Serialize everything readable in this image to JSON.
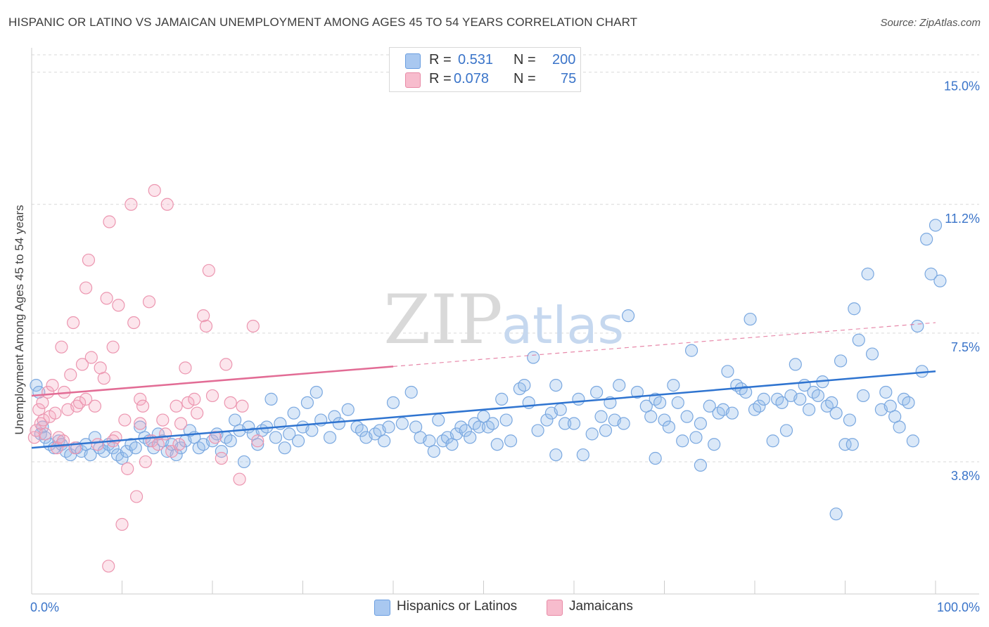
{
  "header": {
    "title": "HISPANIC OR LATINO VS JAMAICAN UNEMPLOYMENT AMONG AGES 45 TO 54 YEARS CORRELATION CHART",
    "source": "Source: ZipAtlas.com"
  },
  "watermark": {
    "zip": "ZIP",
    "atlas": "atlas"
  },
  "legend": {
    "r_label": "R =",
    "n_label": "N =",
    "series": [
      {
        "name": "Hispanics or Latinos",
        "r": "0.531",
        "n": "200",
        "fill": "#a9c8f0",
        "stroke": "#6a9ee0"
      },
      {
        "name": "Jamaicans",
        "r": "0.078",
        "n": "75",
        "fill": "#f7bccd",
        "stroke": "#e88aa6"
      }
    ]
  },
  "colors": {
    "blue_point_fill": "rgba(150,188,236,0.35)",
    "blue_point_stroke": "#7aa8e0",
    "blue_line": "#2f74d0",
    "pink_point_fill": "rgba(246,170,192,0.30)",
    "pink_point_stroke": "#ec96b0",
    "pink_line": "#e26c95",
    "tick_label": "#3a74c9",
    "grid": "#d9d9d9"
  },
  "chart_data": {
    "type": "scatter",
    "title": "HISPANIC OR LATINO VS JAMAICAN UNEMPLOYMENT AMONG AGES 45 TO 54 YEARS CORRELATION CHART",
    "xlabel": "",
    "ylabel": "Unemployment Among Ages 45 to 54 years",
    "xlim": [
      0,
      100
    ],
    "ylim": [
      0,
      15.5
    ],
    "x_tick_labels": [
      "0.0%",
      "100.0%"
    ],
    "y_ticks": [
      3.8,
      7.5,
      11.2,
      15.0
    ],
    "y_tick_labels": [
      "3.8%",
      "7.5%",
      "11.2%",
      "15.0%"
    ],
    "grid": true,
    "series": [
      {
        "name": "Hispanics or Latinos",
        "trend": {
          "x0": 0,
          "y0": 4.2,
          "x1": 100,
          "y1": 6.4,
          "solid_to": 100
        },
        "points": [
          [
            0.5,
            6.0
          ],
          [
            0.8,
            5.8
          ],
          [
            1.0,
            4.6
          ],
          [
            1.2,
            4.8
          ],
          [
            1.5,
            4.5
          ],
          [
            2,
            4.3
          ],
          [
            2.5,
            4.2
          ],
          [
            3,
            4.4
          ],
          [
            3.3,
            4.3
          ],
          [
            3.8,
            4.1
          ],
          [
            4.3,
            4.0
          ],
          [
            5,
            4.2
          ],
          [
            5.5,
            4.1
          ],
          [
            6,
            4.3
          ],
          [
            6.5,
            4.0
          ],
          [
            7,
            4.5
          ],
          [
            7.5,
            4.2
          ],
          [
            8,
            4.1
          ],
          [
            8.5,
            4.3
          ],
          [
            9,
            4.2
          ],
          [
            9.5,
            4.0
          ],
          [
            10,
            3.9
          ],
          [
            10.5,
            4.1
          ],
          [
            11,
            4.3
          ],
          [
            11.5,
            4.2
          ],
          [
            12,
            4.8
          ],
          [
            12.5,
            4.5
          ],
          [
            13,
            4.4
          ],
          [
            13.5,
            4.2
          ],
          [
            14,
            4.6
          ],
          [
            14.5,
            4.4
          ],
          [
            15,
            4.1
          ],
          [
            15.5,
            4.3
          ],
          [
            16,
            4.0
          ],
          [
            16.5,
            4.2
          ],
          [
            17,
            4.4
          ],
          [
            17.5,
            4.7
          ],
          [
            18,
            4.5
          ],
          [
            18.5,
            4.2
          ],
          [
            19,
            4.3
          ],
          [
            20,
            4.4
          ],
          [
            20.5,
            4.6
          ],
          [
            21,
            4.1
          ],
          [
            21.5,
            4.5
          ],
          [
            22,
            4.4
          ],
          [
            22.5,
            5.0
          ],
          [
            23,
            4.7
          ],
          [
            23.5,
            3.8
          ],
          [
            24,
            4.8
          ],
          [
            24.5,
            4.6
          ],
          [
            25,
            4.3
          ],
          [
            25.5,
            4.7
          ],
          [
            26,
            4.8
          ],
          [
            26.5,
            5.6
          ],
          [
            27,
            4.5
          ],
          [
            27.5,
            4.9
          ],
          [
            28,
            4.2
          ],
          [
            28.5,
            4.6
          ],
          [
            29,
            5.2
          ],
          [
            29.5,
            4.4
          ],
          [
            30,
            4.8
          ],
          [
            30.5,
            5.5
          ],
          [
            31,
            4.7
          ],
          [
            31.5,
            5.8
          ],
          [
            32,
            5.0
          ],
          [
            33,
            4.5
          ],
          [
            33.5,
            5.1
          ],
          [
            34,
            4.9
          ],
          [
            35,
            5.3
          ],
          [
            36,
            4.8
          ],
          [
            36.5,
            4.7
          ],
          [
            37,
            4.5
          ],
          [
            38,
            4.6
          ],
          [
            38.5,
            4.7
          ],
          [
            39,
            4.4
          ],
          [
            39.5,
            4.8
          ],
          [
            40,
            5.5
          ],
          [
            41,
            4.9
          ],
          [
            42,
            5.8
          ],
          [
            42.5,
            4.8
          ],
          [
            43,
            4.5
          ],
          [
            44,
            4.4
          ],
          [
            44.5,
            4.1
          ],
          [
            45,
            5.0
          ],
          [
            45.5,
            4.4
          ],
          [
            46,
            4.5
          ],
          [
            46.5,
            4.3
          ],
          [
            47,
            4.6
          ],
          [
            47.5,
            4.8
          ],
          [
            48,
            4.7
          ],
          [
            48.5,
            4.5
          ],
          [
            49,
            4.9
          ],
          [
            49.5,
            4.8
          ],
          [
            50,
            5.1
          ],
          [
            50.5,
            4.8
          ],
          [
            51,
            4.9
          ],
          [
            51.5,
            4.3
          ],
          [
            52,
            5.6
          ],
          [
            52.5,
            5.0
          ],
          [
            53,
            4.4
          ],
          [
            54,
            5.9
          ],
          [
            54.5,
            6.0
          ],
          [
            55,
            5.5
          ],
          [
            55.5,
            6.8
          ],
          [
            56,
            4.7
          ],
          [
            57,
            5.0
          ],
          [
            57.5,
            5.2
          ],
          [
            58,
            6.0
          ],
          [
            58.5,
            5.3
          ],
          [
            59,
            4.9
          ],
          [
            60,
            4.9
          ],
          [
            60.5,
            5.6
          ],
          [
            61,
            4.0
          ],
          [
            62,
            4.6
          ],
          [
            62.5,
            5.8
          ],
          [
            63,
            5.1
          ],
          [
            63.5,
            4.7
          ],
          [
            64,
            5.5
          ],
          [
            64.5,
            5.0
          ],
          [
            65,
            6.0
          ],
          [
            65.5,
            4.9
          ],
          [
            66,
            8.0
          ],
          [
            67,
            5.8
          ],
          [
            68,
            5.4
          ],
          [
            68.5,
            5.1
          ],
          [
            69,
            5.6
          ],
          [
            69.5,
            5.5
          ],
          [
            70,
            5.0
          ],
          [
            70.5,
            4.8
          ],
          [
            71,
            6.0
          ],
          [
            71.5,
            5.5
          ],
          [
            72,
            4.4
          ],
          [
            72.5,
            5.1
          ],
          [
            73,
            7.0
          ],
          [
            73.5,
            4.5
          ],
          [
            74,
            4.9
          ],
          [
            75,
            5.4
          ],
          [
            75.5,
            4.3
          ],
          [
            76,
            5.2
          ],
          [
            76.5,
            5.3
          ],
          [
            77,
            6.4
          ],
          [
            77.5,
            5.2
          ],
          [
            78,
            6.0
          ],
          [
            78.5,
            5.9
          ],
          [
            79,
            5.8
          ],
          [
            79.5,
            7.9
          ],
          [
            80,
            5.3
          ],
          [
            80.5,
            5.4
          ],
          [
            81,
            5.6
          ],
          [
            82,
            4.4
          ],
          [
            82.5,
            5.6
          ],
          [
            83,
            5.5
          ],
          [
            83.5,
            4.7
          ],
          [
            84,
            5.7
          ],
          [
            84.5,
            6.6
          ],
          [
            85,
            5.6
          ],
          [
            85.5,
            6.0
          ],
          [
            86,
            5.3
          ],
          [
            86.5,
            5.8
          ],
          [
            87,
            5.7
          ],
          [
            87.5,
            6.1
          ],
          [
            88,
            5.4
          ],
          [
            88.5,
            5.5
          ],
          [
            89,
            5.2
          ],
          [
            89.5,
            6.7
          ],
          [
            90,
            4.3
          ],
          [
            90.5,
            5.0
          ],
          [
            90.8,
            4.3
          ],
          [
            91,
            8.2
          ],
          [
            91.5,
            7.3
          ],
          [
            92,
            5.7
          ],
          [
            92.5,
            9.2
          ],
          [
            93,
            6.9
          ],
          [
            94,
            5.3
          ],
          [
            94.5,
            5.8
          ],
          [
            95,
            5.4
          ],
          [
            95.5,
            5.1
          ],
          [
            96,
            4.8
          ],
          [
            96.5,
            5.6
          ],
          [
            97,
            5.5
          ],
          [
            97.5,
            4.4
          ],
          [
            98,
            7.7
          ],
          [
            98.5,
            6.4
          ],
          [
            99,
            10.2
          ],
          [
            99.5,
            9.2
          ],
          [
            100,
            10.6
          ],
          [
            100.5,
            9.0
          ],
          [
            89,
            2.3
          ],
          [
            74,
            3.7
          ],
          [
            69,
            3.9
          ],
          [
            58,
            4.0
          ]
        ]
      },
      {
        "name": "Jamaicans",
        "trend": {
          "x0": 0,
          "y0": 5.7,
          "x1": 100,
          "y1": 7.8,
          "solid_to": 40
        },
        "points": [
          [
            0.3,
            4.5
          ],
          [
            0.5,
            4.7
          ],
          [
            0.8,
            5.3
          ],
          [
            1,
            4.9
          ],
          [
            1.3,
            5.0
          ],
          [
            1.5,
            4.6
          ],
          [
            1.8,
            5.8
          ],
          [
            2,
            5.1
          ],
          [
            2.3,
            6.0
          ],
          [
            2.6,
            5.2
          ],
          [
            3,
            4.5
          ],
          [
            3.3,
            7.1
          ],
          [
            3.6,
            5.8
          ],
          [
            4,
            5.3
          ],
          [
            4.3,
            6.3
          ],
          [
            4.6,
            7.8
          ],
          [
            5,
            5.4
          ],
          [
            5.3,
            5.5
          ],
          [
            5.6,
            6.6
          ],
          [
            6,
            8.8
          ],
          [
            6.3,
            9.6
          ],
          [
            6.6,
            6.8
          ],
          [
            7,
            5.4
          ],
          [
            7.3,
            4.3
          ],
          [
            7.6,
            6.5
          ],
          [
            8,
            6.2
          ],
          [
            8.3,
            8.5
          ],
          [
            8.6,
            10.7
          ],
          [
            9,
            7.1
          ],
          [
            9.3,
            4.5
          ],
          [
            9.6,
            8.3
          ],
          [
            10,
            2.0
          ],
          [
            10.3,
            5.0
          ],
          [
            10.6,
            3.6
          ],
          [
            11,
            11.2
          ],
          [
            11.3,
            7.8
          ],
          [
            11.6,
            2.8
          ],
          [
            12,
            5.6
          ],
          [
            12.3,
            5.4
          ],
          [
            12.6,
            3.8
          ],
          [
            13,
            8.4
          ],
          [
            13.3,
            4.4
          ],
          [
            13.6,
            11.6
          ],
          [
            14,
            4.3
          ],
          [
            14.5,
            5.0
          ],
          [
            14.8,
            4.6
          ],
          [
            15,
            11.2
          ],
          [
            15.5,
            4.1
          ],
          [
            16,
            5.4
          ],
          [
            16.3,
            4.3
          ],
          [
            17,
            6.5
          ],
          [
            17.3,
            5.5
          ],
          [
            18,
            5.6
          ],
          [
            18.3,
            5.2
          ],
          [
            19,
            8.0
          ],
          [
            19.3,
            7.7
          ],
          [
            19.6,
            9.3
          ],
          [
            20,
            5.7
          ],
          [
            20.3,
            4.5
          ],
          [
            21,
            3.9
          ],
          [
            21.5,
            6.6
          ],
          [
            22,
            5.5
          ],
          [
            23,
            3.3
          ],
          [
            23.3,
            5.4
          ],
          [
            24.5,
            7.7
          ],
          [
            25,
            4.4
          ],
          [
            8.5,
            0.8
          ],
          [
            2.8,
            4.2
          ],
          [
            6,
            5.6
          ],
          [
            12,
            4.9
          ],
          [
            9,
            4.4
          ],
          [
            4.8,
            4.2
          ],
          [
            1.2,
            5.5
          ],
          [
            16.5,
            4.9
          ],
          [
            3.5,
            4.4
          ]
        ]
      }
    ]
  }
}
